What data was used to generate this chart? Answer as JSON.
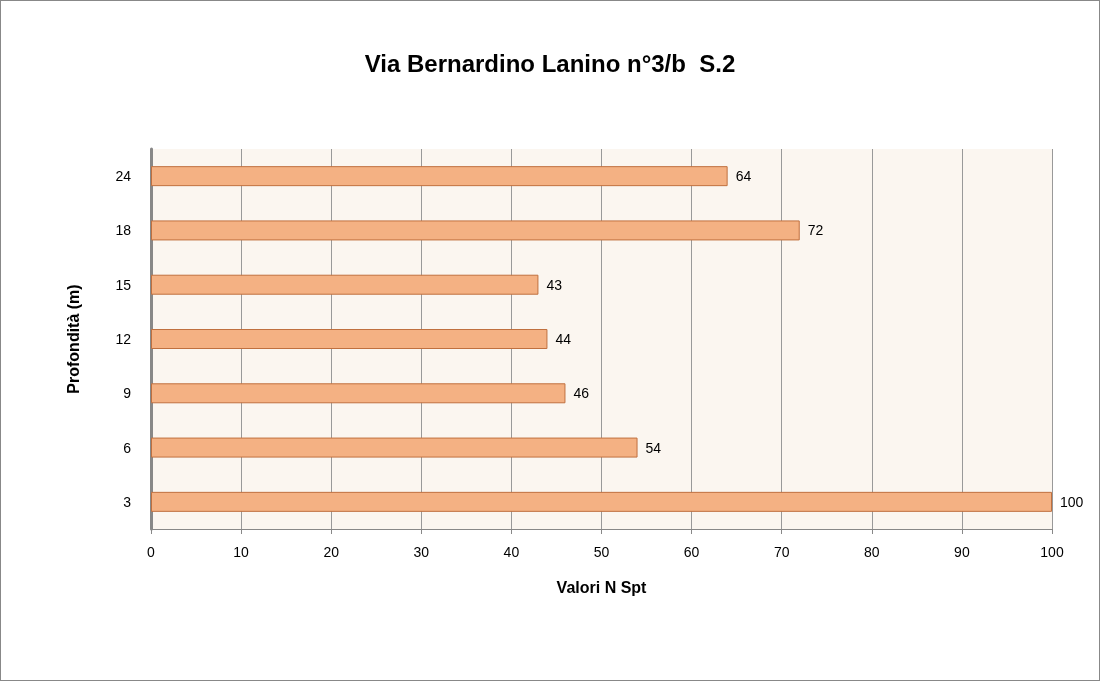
{
  "chart_data": {
    "type": "bar",
    "orientation": "horizontal",
    "title": "Via Bernardino Lanino n°3/b  S.2",
    "xlabel": "Valori N Spt",
    "ylabel": "Profondità (m)",
    "categories": [
      "24",
      "18",
      "15",
      "12",
      "9",
      "6",
      "3"
    ],
    "values": [
      64,
      72,
      43,
      44,
      46,
      54,
      100
    ],
    "color": "#f4b183",
    "xlim": [
      0,
      100
    ],
    "xticks": [
      0,
      10,
      20,
      30,
      40,
      50,
      60,
      70,
      80,
      90,
      100
    ],
    "grid": "x",
    "data_labels": true
  }
}
